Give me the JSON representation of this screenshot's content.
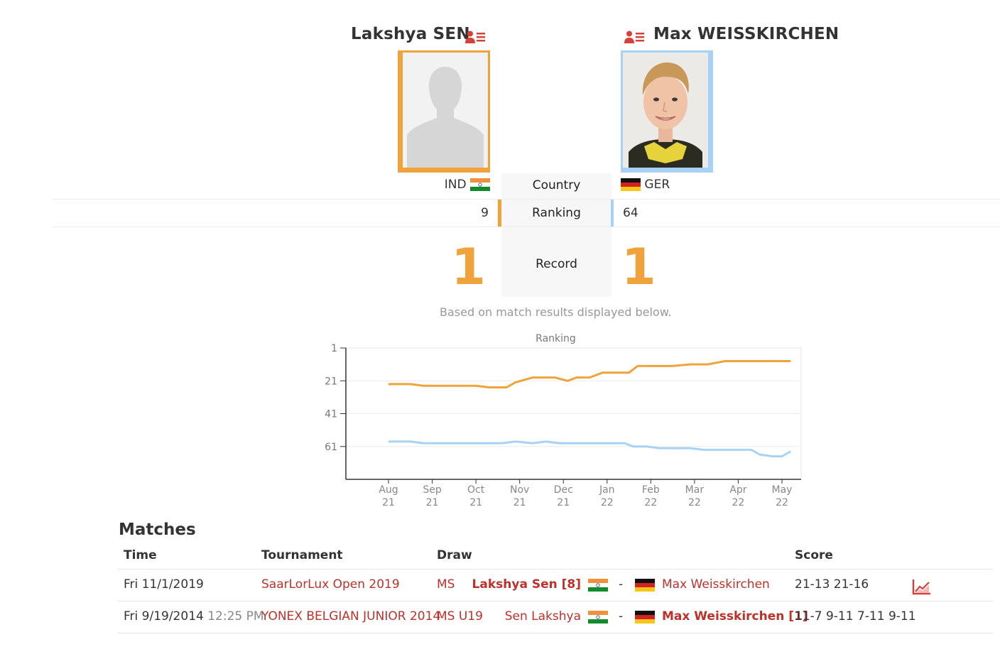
{
  "player1": {
    "name": "Lakshya SEN",
    "country": "IND",
    "ranking": "9",
    "record": "1",
    "photo": "placeholder-silhouette",
    "accent": "#f0a33a"
  },
  "player2": {
    "name": "Max WEISSKIRCHEN",
    "country": "GER",
    "ranking": "64",
    "record": "1",
    "photo": "player-photo",
    "accent": "#a8d2f5"
  },
  "labels": {
    "country": "Country",
    "ranking": "Ranking",
    "record": "Record"
  },
  "note": "Based on match results displayed below.",
  "chart_data": {
    "type": "line",
    "title": "Ranking",
    "ylim": [
      1,
      81
    ],
    "y_reversed": true,
    "yticks": [
      "1",
      "21",
      "41",
      "61"
    ],
    "xticks": [
      {
        "month": "Aug",
        "year": "21"
      },
      {
        "month": "Sep",
        "year": "21"
      },
      {
        "month": "Oct",
        "year": "21"
      },
      {
        "month": "Nov",
        "year": "21"
      },
      {
        "month": "Dec",
        "year": "21"
      },
      {
        "month": "Jan",
        "year": "22"
      },
      {
        "month": "Feb",
        "year": "22"
      },
      {
        "month": "Mar",
        "year": "22"
      },
      {
        "month": "Apr",
        "year": "22"
      },
      {
        "month": "May",
        "year": "22"
      }
    ],
    "grid": true,
    "series": [
      {
        "color": "#f0a33a",
        "points": [
          [
            0,
            23
          ],
          [
            0.5,
            23
          ],
          [
            0.8,
            24
          ],
          [
            1.5,
            24
          ],
          [
            2,
            24
          ],
          [
            2.3,
            25
          ],
          [
            2.7,
            25
          ],
          [
            2.9,
            22
          ],
          [
            3.3,
            19
          ],
          [
            3.8,
            19
          ],
          [
            4.1,
            21
          ],
          [
            4.3,
            19
          ],
          [
            4.6,
            19
          ],
          [
            4.9,
            16
          ],
          [
            5.5,
            16
          ],
          [
            5.7,
            12
          ],
          [
            6.5,
            12
          ],
          [
            6.9,
            11
          ],
          [
            7.3,
            11
          ],
          [
            7.7,
            9
          ],
          [
            8.5,
            9
          ],
          [
            9.2,
            9
          ]
        ]
      },
      {
        "color": "#a8d2f5",
        "points": [
          [
            0,
            58
          ],
          [
            0.5,
            58
          ],
          [
            0.8,
            59
          ],
          [
            1.5,
            59
          ],
          [
            2,
            59
          ],
          [
            2.6,
            59
          ],
          [
            2.9,
            58
          ],
          [
            3.3,
            59
          ],
          [
            3.6,
            58
          ],
          [
            3.9,
            59
          ],
          [
            4.5,
            59
          ],
          [
            5.4,
            59
          ],
          [
            5.6,
            61
          ],
          [
            5.9,
            61
          ],
          [
            6.2,
            62
          ],
          [
            6.9,
            62
          ],
          [
            7.2,
            63
          ],
          [
            7.9,
            63
          ],
          [
            8.3,
            63
          ],
          [
            8.5,
            66
          ],
          [
            8.8,
            67
          ],
          [
            9.0,
            67
          ],
          [
            9.2,
            64
          ]
        ]
      }
    ]
  },
  "matches": {
    "title": "Matches",
    "headers": {
      "time": "Time",
      "tournament": "Tournament",
      "draw": "Draw",
      "score": "Score"
    },
    "rows": [
      {
        "date": "Fri 11/1/2019",
        "time": "",
        "tournament": "SaarLorLux Open 2019",
        "draw": "MS",
        "p1": "Lakshya Sen [8]",
        "sep": "-",
        "p2": "Max Weisskirchen",
        "score": "21-13 21-16",
        "winner": 1,
        "chart_icon": "line-chart-icon"
      },
      {
        "date": "Fri 9/19/2014",
        "time": "12:25 PM",
        "tournament": "YONEX BELGIAN JUNIOR 2014",
        "draw": "MS U19",
        "p1": "Sen Lakshya",
        "sep": "-",
        "p2": "Max Weisskirchen [1]",
        "score": "11-7 9-11 7-11 9-11",
        "winner": 2,
        "chart_icon": ""
      }
    ]
  }
}
